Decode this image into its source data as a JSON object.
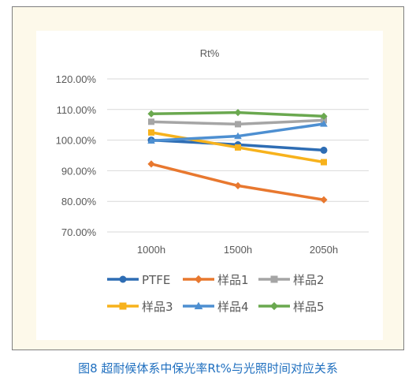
{
  "colors": {
    "PTFE": "#2e6db4",
    "样品1": "#e8782f",
    "样品2": "#a5a5a5",
    "样品3": "#f7b21c",
    "样品4": "#4d8fd1",
    "样品5": "#6aa84f"
  },
  "chart_data": {
    "type": "line",
    "title": "Rt%",
    "xlabel": "",
    "ylabel": "",
    "categories": [
      "1000h",
      "1500h",
      "2050h"
    ],
    "ylim": [
      70,
      120
    ],
    "yticks": [
      "70.00%",
      "80.00%",
      "90.00%",
      "100.00%",
      "110.00%",
      "120.00%"
    ],
    "grid": true,
    "legend_position": "bottom",
    "series": [
      {
        "name": "PTFE",
        "marker": "circle",
        "values": [
          100.0,
          98.5,
          96.7
        ]
      },
      {
        "name": "样品1",
        "marker": "diamond",
        "values": [
          92.2,
          85.1,
          80.5
        ]
      },
      {
        "name": "样品2",
        "marker": "square",
        "values": [
          106.0,
          105.2,
          106.5
        ]
      },
      {
        "name": "样品3",
        "marker": "square",
        "values": [
          102.5,
          97.6,
          92.8
        ]
      },
      {
        "name": "样品4",
        "marker": "triangle",
        "values": [
          99.8,
          101.3,
          105.3
        ]
      },
      {
        "name": "样品5",
        "marker": "diamond",
        "values": [
          108.6,
          109.0,
          107.8
        ]
      }
    ]
  },
  "caption": "图8 超耐候体系中保光率Rt%与光照时间对应关系"
}
